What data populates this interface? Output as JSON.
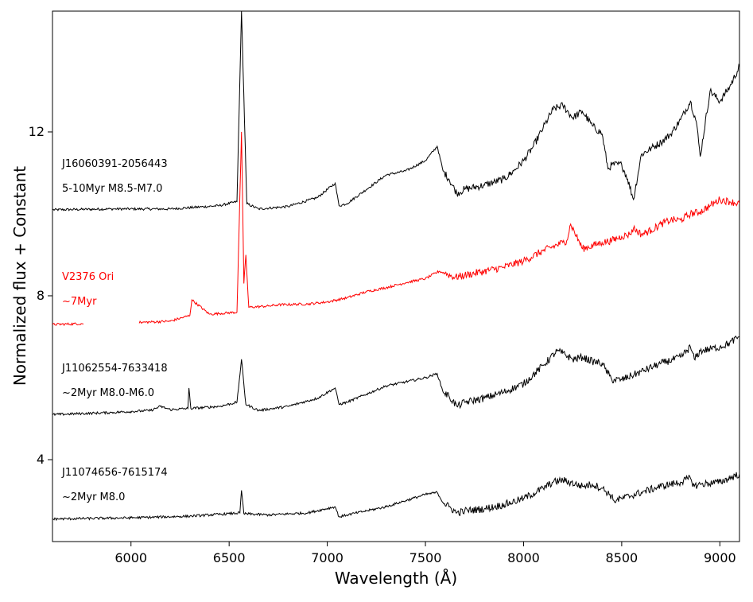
{
  "chart_data": {
    "type": "line",
    "title": "",
    "xlabel": "Wavelength (Å)",
    "ylabel": "Normalized flux + Constant",
    "xlim": [
      5600,
      9100
    ],
    "ylim": [
      2.0,
      14.95
    ],
    "xticks": [
      6000,
      6500,
      7000,
      7500,
      8000,
      8500,
      9000
    ],
    "xtick_labels": [
      "6000",
      "6500",
      "7000",
      "7500",
      "8000",
      "8500",
      "9000"
    ],
    "yticks": [
      4,
      8,
      12
    ],
    "ytick_labels": [
      "4",
      "8",
      "12"
    ],
    "grid": false,
    "series": [
      {
        "name": "J16060391-2056443",
        "label_line1": "J16060391-2056443",
        "label_line2": "5-10Myr M8.5-M7.0",
        "color": "#000000",
        "x": [
          5600,
          5900,
          6200,
          6450,
          6540,
          6563,
          6590,
          6650,
          6800,
          6950,
          7040,
          7060,
          7100,
          7200,
          7300,
          7400,
          7500,
          7560,
          7590,
          7620,
          7660,
          7700,
          7800,
          7900,
          7950,
          8000,
          8050,
          8100,
          8150,
          8200,
          8250,
          8300,
          8350,
          8400,
          8430,
          8450,
          8500,
          8530,
          8560,
          8600,
          8650,
          8700,
          8750,
          8800,
          8850,
          8880,
          8900,
          8950,
          9000,
          9050,
          9100
        ],
        "y": [
          10.1,
          10.12,
          10.12,
          10.2,
          10.3,
          14.95,
          10.25,
          10.12,
          10.18,
          10.4,
          10.75,
          10.2,
          10.25,
          10.6,
          10.95,
          11.05,
          11.3,
          11.65,
          11.05,
          10.85,
          10.5,
          10.6,
          10.7,
          10.85,
          11.05,
          11.3,
          11.65,
          12.1,
          12.55,
          12.65,
          12.35,
          12.5,
          12.15,
          11.95,
          11.1,
          11.2,
          11.2,
          10.85,
          10.35,
          11.45,
          11.6,
          11.75,
          11.95,
          12.3,
          12.75,
          12.25,
          11.4,
          13.0,
          12.75,
          13.1,
          13.6
        ]
      },
      {
        "name": "V2376 Ori",
        "label_line1": "V2376 Ori",
        "label_line2": "~7Myr",
        "color": "#ff0000",
        "x": [
          5600,
          5750,
          6050,
          6200,
          6300,
          6310,
          6400,
          6540,
          6563,
          6575,
          6585,
          6600,
          6700,
          6750,
          6900,
          7000,
          7100,
          7200,
          7300,
          7400,
          7500,
          7570,
          7600,
          7650,
          7700,
          7800,
          7900,
          8000,
          8100,
          8200,
          8220,
          8240,
          8300,
          8400,
          8450,
          8500,
          8540,
          8560,
          8600,
          8650,
          8700,
          8750,
          8800,
          8850,
          8900,
          8950,
          9000,
          9050,
          9100
        ],
        "y": [
          7.3,
          7.32,
          7.35,
          7.38,
          7.52,
          7.9,
          7.55,
          7.6,
          12.0,
          8.3,
          9.0,
          7.72,
          7.75,
          7.78,
          7.8,
          7.85,
          7.95,
          8.1,
          8.2,
          8.32,
          8.42,
          8.6,
          8.55,
          8.45,
          8.5,
          8.6,
          8.7,
          8.85,
          9.1,
          9.3,
          9.35,
          9.75,
          9.15,
          9.3,
          9.35,
          9.45,
          9.5,
          9.65,
          9.5,
          9.6,
          9.75,
          9.85,
          9.85,
          10.0,
          10.05,
          10.2,
          10.35,
          10.3,
          10.25
        ]
      },
      {
        "name": "J11062554-7633418",
        "label_line1": "J11062554-7633418",
        "label_line2": "~2Myr M8.0-M6.0",
        "color": "#000000",
        "x": [
          5600,
          5900,
          6100,
          6150,
          6200,
          6290,
          6295,
          6305,
          6450,
          6540,
          6563,
          6585,
          6650,
          6800,
          6950,
          7040,
          7060,
          7100,
          7200,
          7300,
          7400,
          7500,
          7560,
          7590,
          7620,
          7660,
          7700,
          7800,
          7900,
          8000,
          8100,
          8170,
          8200,
          8250,
          8300,
          8350,
          8400,
          8430,
          8450,
          8500,
          8600,
          8700,
          8800,
          8850,
          8870,
          8900,
          9000,
          9050,
          9100
        ],
        "y": [
          5.1,
          5.15,
          5.2,
          5.3,
          5.22,
          5.25,
          5.75,
          5.25,
          5.3,
          5.4,
          6.45,
          5.35,
          5.2,
          5.3,
          5.5,
          5.75,
          5.35,
          5.4,
          5.6,
          5.8,
          5.9,
          6.0,
          6.1,
          5.65,
          5.55,
          5.3,
          5.4,
          5.5,
          5.65,
          5.85,
          6.3,
          6.65,
          6.6,
          6.45,
          6.5,
          6.4,
          6.35,
          6.1,
          5.95,
          5.95,
          6.15,
          6.35,
          6.5,
          6.75,
          6.45,
          6.65,
          6.75,
          6.85,
          7.0
        ]
      },
      {
        "name": "J11074656-7615174",
        "label_line1": "J11074656-7615174",
        "label_line2": "~2Myr M8.0",
        "color": "#000000",
        "x": [
          5600,
          6000,
          6300,
          6500,
          6555,
          6563,
          6575,
          6700,
          6900,
          7040,
          7060,
          7100,
          7200,
          7300,
          7400,
          7500,
          7560,
          7590,
          7620,
          7660,
          7700,
          7800,
          7900,
          8000,
          8100,
          8150,
          8200,
          8300,
          8350,
          8400,
          8440,
          8460,
          8500,
          8600,
          8700,
          8800,
          8850,
          8870,
          8900,
          9000,
          9100
        ],
        "y": [
          2.55,
          2.58,
          2.62,
          2.68,
          2.7,
          3.25,
          2.68,
          2.65,
          2.7,
          2.85,
          2.6,
          2.65,
          2.75,
          2.85,
          3.0,
          3.15,
          3.2,
          2.95,
          2.85,
          2.7,
          2.75,
          2.8,
          2.9,
          3.05,
          3.3,
          3.45,
          3.5,
          3.35,
          3.4,
          3.3,
          3.15,
          3.0,
          3.05,
          3.2,
          3.35,
          3.45,
          3.55,
          3.35,
          3.4,
          3.45,
          3.65
        ]
      }
    ]
  }
}
